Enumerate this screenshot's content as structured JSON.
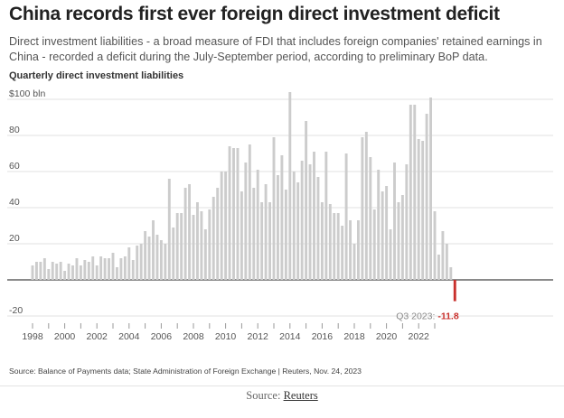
{
  "header": {
    "title": "China records first ever foreign direct investment deficit",
    "subtitle": "Direct investment liabilities - a broad measure of FDI that includes foreign companies' retained earnings in China - recorded a deficit during the July-September period, according to preliminary BoP data."
  },
  "footer": {
    "source_note": "Source: Balance of Payments data; State Administration of Foreign Exchange | Reuters, Nov. 24, 2023",
    "credit_prefix": "Source: ",
    "credit_link": "Reuters"
  },
  "colors": {
    "bar": "#cccccc",
    "negative_bar": "#c9302c",
    "grid": "#e2e2e2",
    "zero_line": "#444444",
    "text": "#555555"
  },
  "chart_data": {
    "type": "bar",
    "title": "Quarterly direct investment liabilities",
    "y_unit_label": "$100 bln",
    "ylim": [
      -20,
      100
    ],
    "yticks": [
      -20,
      20,
      40,
      60,
      80,
      100
    ],
    "x_start": "1998 Q1",
    "xticks": [
      "1998",
      "2000",
      "2002",
      "2004",
      "2006",
      "2008",
      "2010",
      "2012",
      "2014",
      "2016",
      "2018",
      "2020",
      "2022"
    ],
    "grid": true,
    "annotation": {
      "label": "Q3 2023:",
      "value_label": "-11.8",
      "target": "2023 Q3"
    },
    "values": [
      8,
      10,
      10,
      12,
      6,
      10,
      9,
      10,
      5,
      9,
      8,
      12,
      8,
      11,
      10,
      13,
      8,
      13,
      12,
      12,
      15,
      7,
      12,
      13,
      18,
      11,
      19,
      20,
      27,
      24,
      33,
      25,
      22,
      20,
      56,
      29,
      37,
      37,
      51,
      53,
      36,
      43,
      38,
      28,
      39,
      46,
      51,
      60,
      60,
      74,
      73,
      73,
      49,
      65,
      75,
      51,
      61,
      43,
      53,
      43,
      79,
      58,
      69,
      50,
      104,
      60,
      54,
      66,
      88,
      64,
      71,
      57,
      43,
      71,
      42,
      37,
      37,
      30,
      70,
      33,
      20,
      33,
      79,
      82,
      68,
      39,
      61,
      49,
      52,
      28,
      65,
      43,
      47,
      64,
      97,
      97,
      78,
      77,
      92,
      101,
      38,
      14,
      27,
      20,
      7,
      -11.8
    ]
  }
}
